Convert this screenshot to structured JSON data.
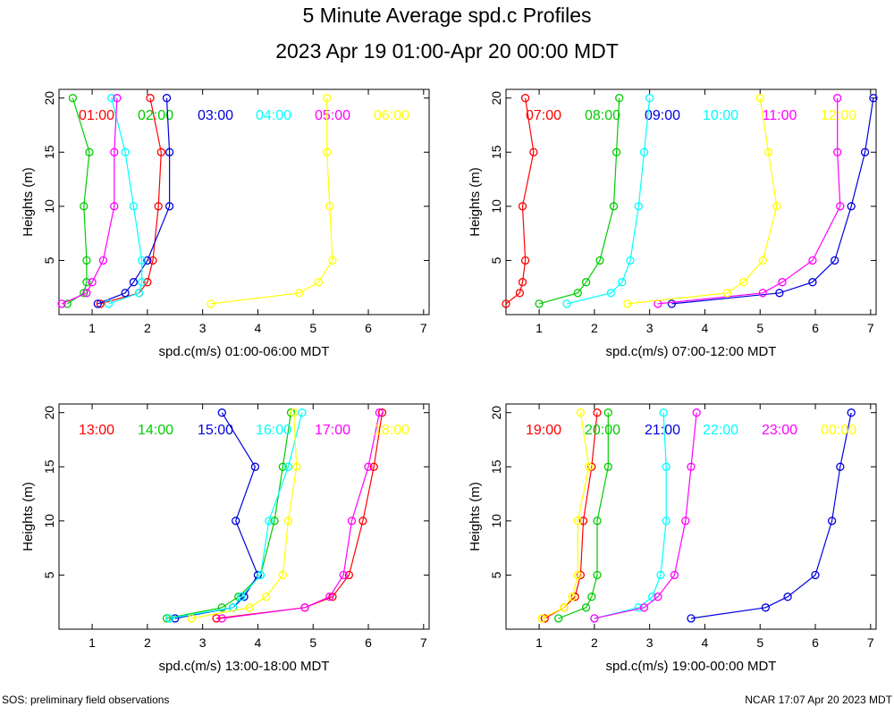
{
  "title": "5 Minute Average spd.c Profiles",
  "subtitle": "2023 Apr 19 01:00-Apr 20 00:00 MDT",
  "footer_left": "SOS: preliminary field observations",
  "footer_right": "NCAR 17:07 Apr 20 2023 MDT",
  "colors": [
    "#ff0000",
    "#00cc00",
    "#0000dd",
    "#00ffff",
    "#ff00ff",
    "#ffff00"
  ],
  "chart_data": [
    {
      "type": "line",
      "title": "",
      "xlabel": "spd.c(m/s) 01:00-06:00 MDT",
      "ylabel": "Heights (m)",
      "xlim": [
        0.4,
        7.1
      ],
      "ylim": [
        0,
        20.8
      ],
      "xticks": [
        1,
        2,
        3,
        4,
        5,
        6,
        7
      ],
      "yticks": [
        5,
        10,
        15,
        20
      ],
      "heights": [
        1,
        2,
        3,
        5,
        10,
        15,
        20
      ],
      "series": [
        {
          "name": "01:00",
          "values": [
            1.15,
            1.85,
            2.0,
            2.1,
            2.2,
            2.25,
            2.05
          ]
        },
        {
          "name": "02:00",
          "values": [
            0.55,
            0.85,
            0.9,
            0.9,
            0.85,
            0.95,
            0.65
          ]
        },
        {
          "name": "03:00",
          "values": [
            1.1,
            1.6,
            1.75,
            2.0,
            2.4,
            2.4,
            2.35
          ]
        },
        {
          "name": "04:00",
          "values": [
            1.3,
            1.85,
            1.9,
            1.9,
            1.75,
            1.6,
            1.35
          ]
        },
        {
          "name": "05:00",
          "values": [
            0.45,
            0.9,
            1.0,
            1.2,
            1.4,
            1.4,
            1.45
          ]
        },
        {
          "name": "06:00",
          "values": [
            3.15,
            4.75,
            5.1,
            5.35,
            5.3,
            5.25,
            5.25
          ]
        }
      ]
    },
    {
      "type": "line",
      "title": "",
      "xlabel": "spd.c(m/s) 07:00-12:00 MDT",
      "ylabel": "Heights (m)",
      "xlim": [
        0.4,
        7.1
      ],
      "ylim": [
        0,
        20.8
      ],
      "xticks": [
        1,
        2,
        3,
        4,
        5,
        6,
        7
      ],
      "yticks": [
        5,
        10,
        15,
        20
      ],
      "heights": [
        1,
        2,
        3,
        5,
        10,
        15,
        20
      ],
      "series": [
        {
          "name": "07:00",
          "values": [
            0.4,
            0.65,
            0.7,
            0.75,
            0.7,
            0.9,
            0.75
          ]
        },
        {
          "name": "08:00",
          "values": [
            1.0,
            1.7,
            1.85,
            2.1,
            2.35,
            2.4,
            2.45
          ]
        },
        {
          "name": "09:00",
          "values": [
            3.4,
            5.35,
            5.95,
            6.35,
            6.65,
            6.9,
            7.05
          ]
        },
        {
          "name": "10:00",
          "values": [
            1.5,
            2.3,
            2.5,
            2.65,
            2.8,
            2.9,
            3.0
          ]
        },
        {
          "name": "11:00",
          "values": [
            3.15,
            5.05,
            5.4,
            5.95,
            6.45,
            6.4,
            6.4
          ]
        },
        {
          "name": "12:00",
          "values": [
            2.6,
            4.4,
            4.7,
            5.05,
            5.3,
            5.15,
            5.0
          ]
        }
      ]
    },
    {
      "type": "line",
      "title": "",
      "xlabel": "spd.c(m/s) 13:00-18:00 MDT",
      "ylabel": "Heights (m)",
      "xlim": [
        0.4,
        7.1
      ],
      "ylim": [
        0,
        20.8
      ],
      "xticks": [
        1,
        2,
        3,
        4,
        5,
        6,
        7
      ],
      "yticks": [
        5,
        10,
        15,
        20
      ],
      "heights": [
        1,
        2,
        3,
        5,
        10,
        15,
        20
      ],
      "series": [
        {
          "name": "13:00",
          "values": [
            3.25,
            4.85,
            5.35,
            5.65,
            5.9,
            6.1,
            6.25
          ]
        },
        {
          "name": "14:00",
          "values": [
            2.35,
            3.35,
            3.65,
            4.05,
            4.3,
            4.45,
            4.6
          ]
        },
        {
          "name": "15:00",
          "values": [
            2.5,
            3.55,
            3.75,
            4.0,
            3.6,
            3.95,
            3.35
          ]
        },
        {
          "name": "16:00",
          "values": [
            2.4,
            3.55,
            3.7,
            4.05,
            4.2,
            4.55,
            4.8
          ]
        },
        {
          "name": "17:00",
          "values": [
            3.35,
            4.85,
            5.3,
            5.55,
            5.7,
            6.0,
            6.2
          ]
        },
        {
          "name": "18:00",
          "values": [
            2.8,
            3.85,
            4.15,
            4.45,
            4.55,
            4.7,
            4.65
          ]
        }
      ]
    },
    {
      "type": "line",
      "title": "",
      "xlabel": "spd.c(m/s) 19:00-00:00 MDT",
      "ylabel": "Heights (m)",
      "xlim": [
        0.4,
        7.1
      ],
      "ylim": [
        0,
        20.8
      ],
      "xticks": [
        1,
        2,
        3,
        4,
        5,
        6,
        7
      ],
      "yticks": [
        5,
        10,
        15,
        20
      ],
      "heights": [
        1,
        2,
        3,
        5,
        10,
        15,
        20
      ],
      "series": [
        {
          "name": "19:00",
          "values": [
            1.1,
            1.45,
            1.65,
            1.75,
            1.8,
            1.95,
            2.05
          ]
        },
        {
          "name": "20:00",
          "values": [
            1.35,
            1.85,
            1.95,
            2.05,
            2.05,
            2.25,
            2.25
          ]
        },
        {
          "name": "21:00",
          "values": [
            3.75,
            5.1,
            5.5,
            6.0,
            6.3,
            6.45,
            6.65
          ]
        },
        {
          "name": "22:00",
          "values": [
            2.0,
            2.8,
            3.05,
            3.2,
            3.3,
            3.3,
            3.25
          ]
        },
        {
          "name": "23:00",
          "values": [
            2.0,
            2.9,
            3.15,
            3.45,
            3.65,
            3.75,
            3.85
          ]
        },
        {
          "name": "00:00",
          "values": [
            1.05,
            1.45,
            1.6,
            1.7,
            1.7,
            1.9,
            1.75
          ]
        }
      ]
    }
  ]
}
